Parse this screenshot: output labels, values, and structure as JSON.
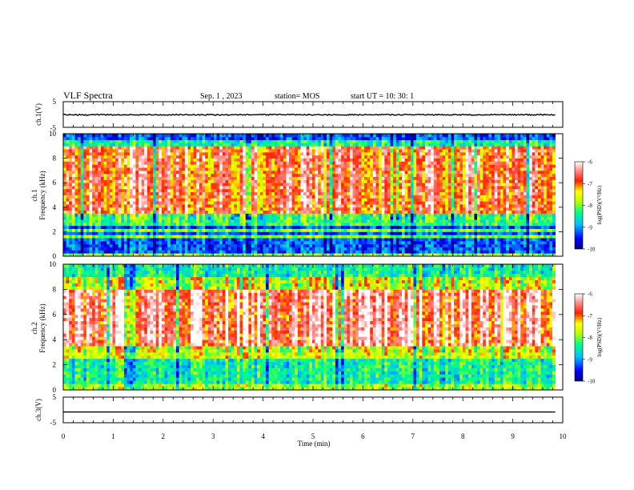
{
  "header": {
    "title": "VLF Spectra",
    "date": "Sep. 1 , 2023",
    "station": "station= MOS",
    "start_ut": "start  UT =  10: 30: 1"
  },
  "chart_data": [
    {
      "type": "line",
      "panel": "ch1-waveform",
      "ylabel": "ch.1(V)",
      "ytick_labels": [
        "5",
        "-5"
      ],
      "ylim": [
        -5,
        5
      ],
      "series": [
        {
          "values": [
            -0.1
          ]
        }
      ]
    },
    {
      "type": "heatmap",
      "panel": "ch1-spectrogram",
      "ylabel": "ch.1\nFrequency (kHz)",
      "ytick_labels": [
        "0",
        "2",
        "4",
        "6",
        "8",
        "10"
      ],
      "ylim": [
        0,
        10
      ],
      "xlim": [
        0,
        9.85
      ],
      "colorbar": {
        "label": "log(PSD)(V²/Hz)",
        "range": [
          -10,
          -6
        ],
        "tick_labels": [
          "-6",
          "-7",
          "-8",
          "-9",
          "-10"
        ],
        "colormap": "jet-to-white"
      },
      "description_bands_khz": {
        "strong": [
          3.5,
          9.0
        ],
        "lines_khz": [
          0.4,
          0.8,
          1.2,
          1.6,
          2.0,
          2.2
        ]
      }
    },
    {
      "type": "heatmap",
      "panel": "ch2-spectrogram",
      "ylabel": "ch.2\nFrequency (kHz)",
      "ytick_labels": [
        "0",
        "2",
        "4",
        "6",
        "8",
        "10"
      ],
      "ylim": [
        0,
        10
      ],
      "xlim": [
        0,
        9.85
      ],
      "colorbar": {
        "label": "log(PSD)(V²/Hz)",
        "range": [
          -10,
          -6
        ],
        "tick_labels": [
          "-6",
          "-7",
          "-8",
          "-9",
          "-10"
        ],
        "colormap": "jet-to-white"
      }
    },
    {
      "type": "line",
      "panel": "ch3-waveform",
      "ylabel": "ch.3(V)",
      "ytick_labels": [
        "5",
        "-5"
      ],
      "ylim": [
        -5,
        5
      ],
      "xlabel": "Time (min)",
      "xtick_labels": [
        "0",
        "1",
        "2",
        "3",
        "4",
        "5",
        "6",
        "7",
        "8",
        "9",
        "10"
      ],
      "xlim": [
        0,
        10
      ],
      "series": [
        {
          "values": [
            -0.8
          ]
        }
      ]
    }
  ]
}
